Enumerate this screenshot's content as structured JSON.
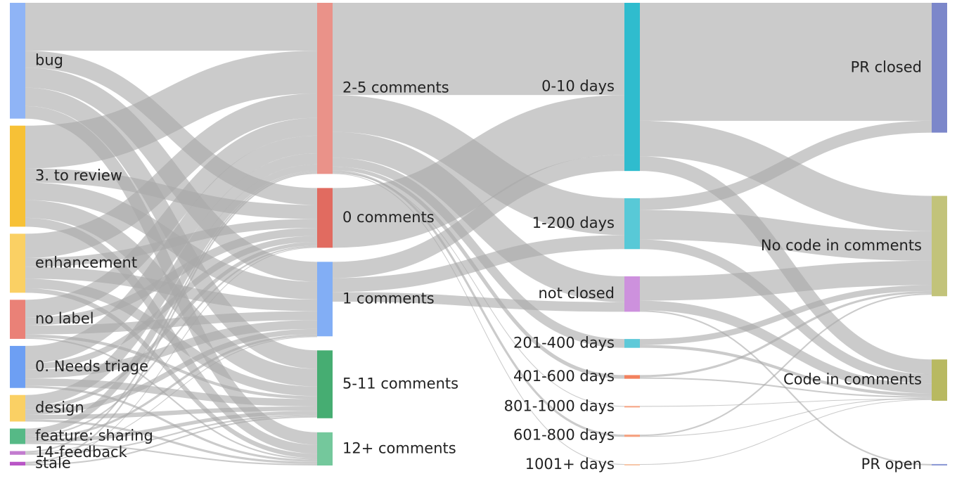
{
  "chart_data": {
    "type": "sankey",
    "link_color": "#a8a8a8",
    "columns": [
      {
        "nodes": [
          {
            "id": "bug",
            "label": "bug",
            "value": 15.7,
            "color": "#8fb4f6"
          },
          {
            "id": "review",
            "label": "3. to review",
            "value": 13.7,
            "color": "#f7c136"
          },
          {
            "id": "enhancement",
            "label": "enhancement",
            "value": 8.0,
            "color": "#fad064"
          },
          {
            "id": "nolabel",
            "label": "no label",
            "value": 5.3,
            "color": "#ea8177"
          },
          {
            "id": "triage",
            "label": "0. Needs triage",
            "value": 5.7,
            "color": "#6d9ff3"
          },
          {
            "id": "design",
            "label": "design",
            "value": 3.6,
            "color": "#fad064"
          },
          {
            "id": "sharing",
            "label": "feature: sharing",
            "value": 2.1,
            "color": "#56b986"
          },
          {
            "id": "feedback",
            "label": "14-feedback",
            "value": 0.5,
            "color": "#c27bcf"
          },
          {
            "id": "stale",
            "label": "stale",
            "value": 0.5,
            "color": "#b956c6"
          }
        ]
      },
      {
        "nodes": [
          {
            "id": "c25",
            "label": "2-5 comments",
            "value": 23.2,
            "color": "#ea9289"
          },
          {
            "id": "c0",
            "label": "0 comments",
            "value": 8.1,
            "color": "#e16b60"
          },
          {
            "id": "c1",
            "label": "1 comments",
            "value": 10.1,
            "color": "#82aef5"
          },
          {
            "id": "c511",
            "label": "5-11 comments",
            "value": 9.2,
            "color": "#46ad72"
          },
          {
            "id": "c12",
            "label": "12+ comments",
            "value": 4.5,
            "color": "#74c89c"
          }
        ]
      },
      {
        "nodes": [
          {
            "id": "d010",
            "label": "0-10 days",
            "value": 22.8,
            "color": "#2fbcce"
          },
          {
            "id": "d1200",
            "label": "1-200 days",
            "value": 6.9,
            "color": "#58c9d7"
          },
          {
            "id": "nc",
            "label": "not closed",
            "value": 4.8,
            "color": "#cd91dd"
          },
          {
            "id": "d201",
            "label": "201-400 days",
            "value": 1.2,
            "color": "#5ec9d8"
          },
          {
            "id": "d401",
            "label": "401-600 days",
            "value": 0.5,
            "color": "#f2815e"
          },
          {
            "id": "d801",
            "label": "801-1000 days",
            "value": 0.1,
            "color": "#f5a07f"
          },
          {
            "id": "d601",
            "label": "601-800 days",
            "value": 0.3,
            "color": "#f5a07f"
          },
          {
            "id": "d1001",
            "label": "1001+ days",
            "value": 0.1,
            "color": "#f7c7a9"
          }
        ]
      },
      {
        "nodes": [
          {
            "id": "prc",
            "label": "PR closed",
            "value": 17.6,
            "color": "#7c87ca"
          },
          {
            "id": "ncode",
            "label": "No code in comments",
            "value": 13.6,
            "color": "#c2c37a"
          },
          {
            "id": "code",
            "label": "Code in comments",
            "value": 5.6,
            "color": "#b8b961"
          },
          {
            "id": "pro",
            "label": "PR open",
            "value": 0.2,
            "color": "#8d9ad5"
          }
        ]
      }
    ],
    "links": [
      {
        "source": "bug",
        "target": "c25",
        "value": 6.5
      },
      {
        "source": "bug",
        "target": "c0",
        "value": 2.3
      },
      {
        "source": "bug",
        "target": "c1",
        "value": 2.7
      },
      {
        "source": "bug",
        "target": "c511",
        "value": 2.5
      },
      {
        "source": "bug",
        "target": "c12",
        "value": 1.7
      },
      {
        "source": "review",
        "target": "c25",
        "value": 5.8
      },
      {
        "source": "review",
        "target": "c0",
        "value": 1.9
      },
      {
        "source": "review",
        "target": "c1",
        "value": 2.4
      },
      {
        "source": "review",
        "target": "c511",
        "value": 2.4
      },
      {
        "source": "review",
        "target": "c12",
        "value": 1.2
      },
      {
        "source": "enhancement",
        "target": "c25",
        "value": 3.3
      },
      {
        "source": "enhancement",
        "target": "c0",
        "value": 1.2
      },
      {
        "source": "enhancement",
        "target": "c1",
        "value": 1.6
      },
      {
        "source": "enhancement",
        "target": "c511",
        "value": 1.3
      },
      {
        "source": "enhancement",
        "target": "c12",
        "value": 0.6
      },
      {
        "source": "nolabel",
        "target": "c25",
        "value": 2.4
      },
      {
        "source": "nolabel",
        "target": "c0",
        "value": 1.1
      },
      {
        "source": "nolabel",
        "target": "c1",
        "value": 1.2
      },
      {
        "source": "nolabel",
        "target": "c511",
        "value": 0.4
      },
      {
        "source": "nolabel",
        "target": "c12",
        "value": 0.2
      },
      {
        "source": "triage",
        "target": "c25",
        "value": 2.4
      },
      {
        "source": "triage",
        "target": "c0",
        "value": 0.8
      },
      {
        "source": "triage",
        "target": "c1",
        "value": 1.2
      },
      {
        "source": "triage",
        "target": "c511",
        "value": 1.0
      },
      {
        "source": "triage",
        "target": "c12",
        "value": 0.3
      },
      {
        "source": "design",
        "target": "c25",
        "value": 1.5
      },
      {
        "source": "design",
        "target": "c0",
        "value": 0.5
      },
      {
        "source": "design",
        "target": "c1",
        "value": 0.7
      },
      {
        "source": "design",
        "target": "c511",
        "value": 0.6
      },
      {
        "source": "design",
        "target": "c12",
        "value": 0.3
      },
      {
        "source": "sharing",
        "target": "c25",
        "value": 0.9
      },
      {
        "source": "sharing",
        "target": "c0",
        "value": 0.2
      },
      {
        "source": "sharing",
        "target": "c1",
        "value": 0.3
      },
      {
        "source": "sharing",
        "target": "c511",
        "value": 0.5
      },
      {
        "source": "sharing",
        "target": "c12",
        "value": 0.2
      },
      {
        "source": "feedback",
        "target": "c25",
        "value": 0.2
      },
      {
        "source": "feedback",
        "target": "c1",
        "value": 0.1
      },
      {
        "source": "feedback",
        "target": "c511",
        "value": 0.2
      },
      {
        "source": "stale",
        "target": "c25",
        "value": 0.2
      },
      {
        "source": "stale",
        "target": "c0",
        "value": 0.1
      },
      {
        "source": "stale",
        "target": "c511",
        "value": 0.2
      },
      {
        "source": "c25",
        "target": "d010",
        "value": 12.5
      },
      {
        "source": "c25",
        "target": "d1200",
        "value": 5.0
      },
      {
        "source": "c25",
        "target": "nc",
        "value": 3.5
      },
      {
        "source": "c25",
        "target": "d201",
        "value": 1.2
      },
      {
        "source": "c25",
        "target": "d401",
        "value": 0.5
      },
      {
        "source": "c25",
        "target": "d601",
        "value": 0.3
      },
      {
        "source": "c25",
        "target": "d801",
        "value": 0.1
      },
      {
        "source": "c25",
        "target": "d1001",
        "value": 0.1
      },
      {
        "source": "c0",
        "target": "d010",
        "value": 8.1
      },
      {
        "source": "c1",
        "target": "d010",
        "value": 2.2
      },
      {
        "source": "c1",
        "target": "d1200",
        "value": 1.9
      },
      {
        "source": "c1",
        "target": "nc",
        "value": 1.3
      },
      {
        "source": "c511",
        "target": "d010",
        "value": 0.0
      },
      {
        "source": "c12",
        "target": "d010",
        "value": 0.0
      },
      {
        "source": "d010",
        "target": "prc",
        "value": 16.0
      },
      {
        "source": "d010",
        "target": "ncode",
        "value": 4.8
      },
      {
        "source": "d010",
        "target": "code",
        "value": 2.0
      },
      {
        "source": "d1200",
        "target": "prc",
        "value": 1.6
      },
      {
        "source": "d1200",
        "target": "ncode",
        "value": 4.0
      },
      {
        "source": "d1200",
        "target": "code",
        "value": 1.3
      },
      {
        "source": "nc",
        "target": "ncode",
        "value": 3.3
      },
      {
        "source": "nc",
        "target": "code",
        "value": 1.3
      },
      {
        "source": "nc",
        "target": "pro",
        "value": 0.2
      },
      {
        "source": "d201",
        "target": "ncode",
        "value": 0.8
      },
      {
        "source": "d201",
        "target": "code",
        "value": 0.4
      },
      {
        "source": "d401",
        "target": "ncode",
        "value": 0.3
      },
      {
        "source": "d401",
        "target": "code",
        "value": 0.2
      },
      {
        "source": "d601",
        "target": "ncode",
        "value": 0.2
      },
      {
        "source": "d601",
        "target": "code",
        "value": 0.1
      },
      {
        "source": "d801",
        "target": "code",
        "value": 0.1
      },
      {
        "source": "d1001",
        "target": "code",
        "value": 0.1
      }
    ]
  }
}
